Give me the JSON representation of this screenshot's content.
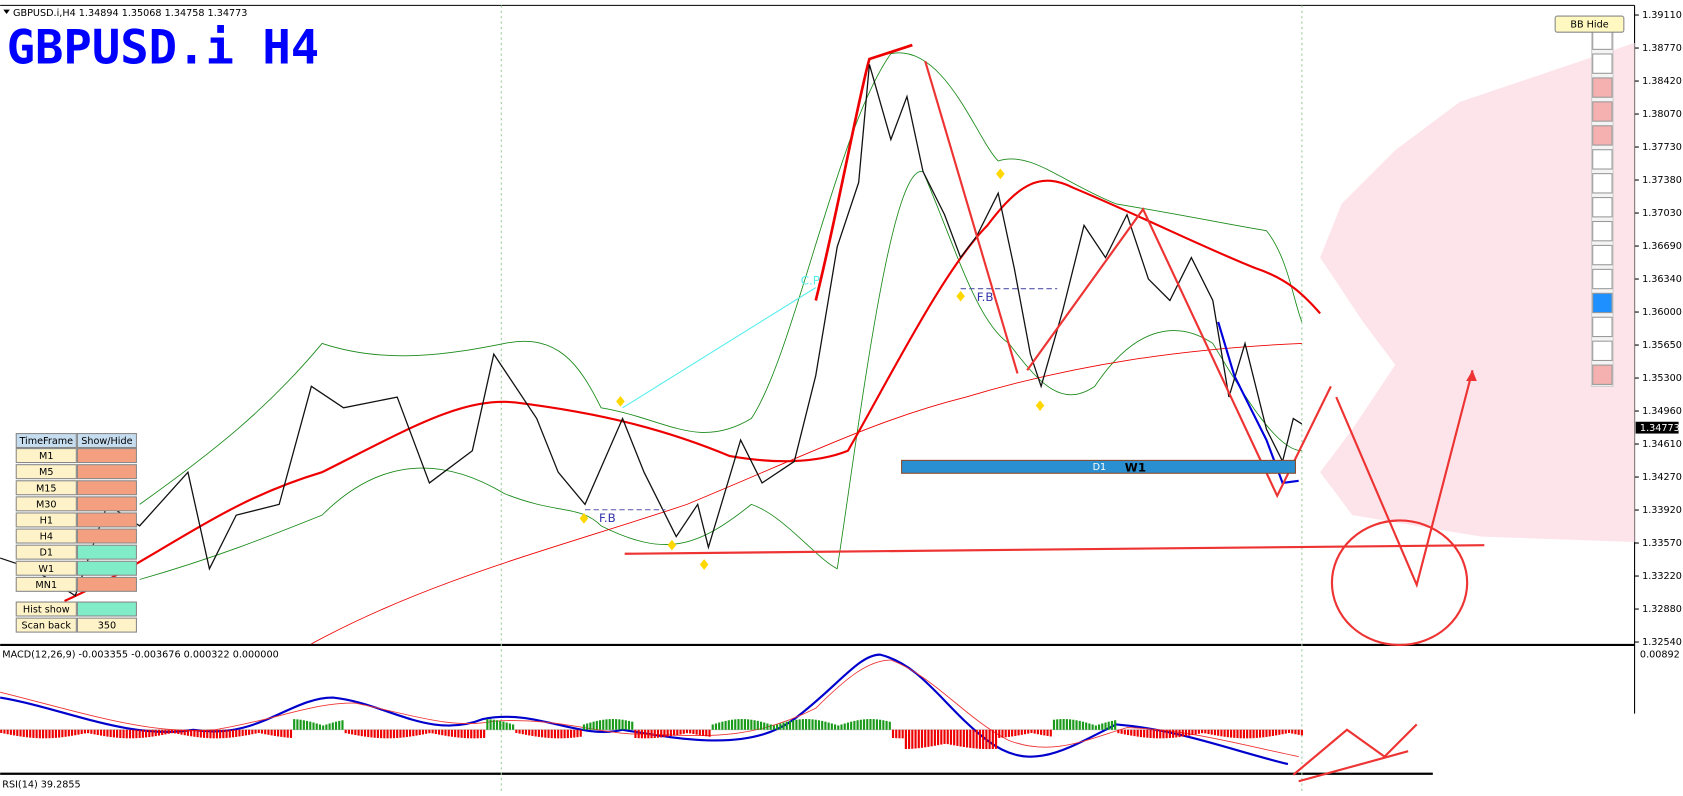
{
  "header": {
    "symbol_info": "GBPUSD.i,H4  1.34894 1.35068 1.34758 1.34773",
    "title": "GBPUSD.i H4"
  },
  "price_axis": {
    "labels": [
      "1.39110",
      "1.38770",
      "1.38420",
      "1.38070",
      "1.37730",
      "1.37380",
      "1.37030",
      "1.36690",
      "1.36340",
      "1.36000",
      "1.35650",
      "1.35300",
      "1.34960",
      "1.34610",
      "1.34270",
      "1.33920",
      "1.33570",
      "1.33220",
      "1.32880",
      "1.32540"
    ],
    "current_price": "1.34773"
  },
  "button": "BB Hide",
  "annotations": {
    "cp": "C.P",
    "fb_left": "F.B",
    "fb_right": "F.B",
    "d1": "D1",
    "w1": "W1"
  },
  "panel": {
    "header": [
      "TimeFrame",
      "Show/Hide"
    ],
    "rows": [
      "M1",
      "M5",
      "M15",
      "M30",
      "H1",
      "H4",
      "D1",
      "W1",
      "MN1"
    ],
    "hist_show": "Hist show",
    "scan_back": "Scan back",
    "scan_back_value": "350"
  },
  "macd": {
    "label": "MACD(12,26,9) -0.003355 -0.003676 0.000322 0.000000",
    "axis_label": "0.00892"
  },
  "rsi": {
    "label": "RSI(14) 39.2855"
  }
}
